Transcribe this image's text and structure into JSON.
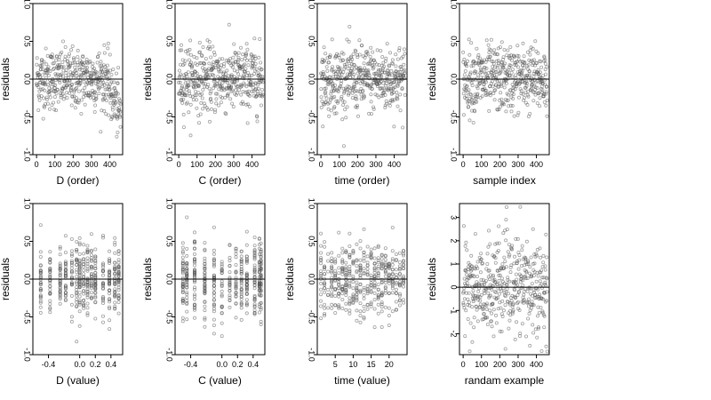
{
  "chart_data": [
    {
      "type": "scatter",
      "id": "p1",
      "xlabel": "D (order)",
      "ylabel": "residuals",
      "xlim": [
        -20,
        470
      ],
      "ylim": [
        -1.0,
        1.0
      ],
      "x_ticks": [
        0,
        100,
        200,
        300,
        400
      ],
      "y_ticks": [
        -1.0,
        -0.5,
        0.0,
        0.5,
        1.0
      ],
      "y_tick_labels": [
        "-1.0",
        "-0.5",
        "0.0",
        "0.5",
        "1.0"
      ],
      "x_tick_labels": [
        "0",
        "100",
        "200",
        "300",
        "400"
      ],
      "hline": 0,
      "n_points": 460,
      "gen": {
        "kind": "index",
        "sd": 0.2,
        "trend": "down_end"
      }
    },
    {
      "type": "scatter",
      "id": "p2",
      "xlabel": "C (order)",
      "ylabel": "residuals",
      "xlim": [
        -20,
        470
      ],
      "ylim": [
        -1.0,
        1.0
      ],
      "x_ticks": [
        0,
        100,
        200,
        300,
        400
      ],
      "y_ticks": [
        -1.0,
        -0.5,
        0.0,
        0.5,
        1.0
      ],
      "y_tick_labels": [
        "-1.0",
        "-0.5",
        "0.0",
        "0.5",
        "1.0"
      ],
      "x_tick_labels": [
        "0",
        "100",
        "200",
        "300",
        "400"
      ],
      "hline": 0,
      "n_points": 460,
      "gen": {
        "kind": "index",
        "sd": 0.22,
        "trend": "none"
      }
    },
    {
      "type": "scatter",
      "id": "p3",
      "xlabel": "time (order)",
      "ylabel": "residuals",
      "xlim": [
        -20,
        470
      ],
      "ylim": [
        -1.0,
        1.0
      ],
      "x_ticks": [
        0,
        100,
        200,
        300,
        400
      ],
      "y_ticks": [
        -1.0,
        -0.5,
        0.0,
        0.5,
        1.0
      ],
      "y_tick_labels": [
        "-1.0",
        "-0.5",
        "0.0",
        "0.5",
        "1.0"
      ],
      "x_tick_labels": [
        "0",
        "100",
        "200",
        "300",
        "400"
      ],
      "hline": 0,
      "n_points": 460,
      "gen": {
        "kind": "index",
        "sd": 0.22,
        "trend": "none"
      }
    },
    {
      "type": "scatter",
      "id": "p4",
      "xlabel": "sample index",
      "ylabel": "residuals",
      "xlim": [
        -20,
        470
      ],
      "ylim": [
        -1.0,
        1.0
      ],
      "x_ticks": [
        0,
        100,
        200,
        300,
        400
      ],
      "y_ticks": [
        -1.0,
        -0.5,
        0.0,
        0.5,
        1.0
      ],
      "y_tick_labels": [
        "-1.0",
        "-0.5",
        "0.0",
        "0.5",
        "1.0"
      ],
      "x_tick_labels": [
        "0",
        "100",
        "200",
        "300",
        "400"
      ],
      "hline": 0,
      "n_points": 460,
      "gen": {
        "kind": "index",
        "sd": 0.22,
        "trend": "none"
      }
    },
    {
      "type": "scatter",
      "id": "p5",
      "xlabel": "D (value)",
      "ylabel": "residuals",
      "xlim": [
        -0.6,
        0.55
      ],
      "ylim": [
        -1.0,
        1.0
      ],
      "x_ticks": [
        -0.4,
        0.0,
        0.2,
        0.4
      ],
      "y_ticks": [
        -1.0,
        -0.5,
        0.0,
        0.5,
        1.0
      ],
      "y_tick_labels": [
        "-1.0",
        "-0.5",
        "0.0",
        "0.5",
        "1.0"
      ],
      "x_tick_labels": [
        "-0.4",
        "0.0",
        "0.2",
        "0.4"
      ],
      "hline": 0,
      "n_points": 460,
      "gen": {
        "kind": "discrete",
        "levels": [
          -0.5,
          -0.38,
          -0.25,
          -0.18,
          -0.1,
          -0.04,
          0.0,
          0.05,
          0.1,
          0.15,
          0.2,
          0.3,
          0.38,
          0.45,
          0.5
        ],
        "sd": 0.22
      }
    },
    {
      "type": "scatter",
      "id": "p6",
      "xlabel": "C (value)",
      "ylabel": "residuals",
      "xlim": [
        -0.6,
        0.55
      ],
      "ylim": [
        -1.0,
        1.0
      ],
      "x_ticks": [
        -0.4,
        0.0,
        0.2,
        0.4
      ],
      "y_ticks": [
        -1.0,
        -0.5,
        0.0,
        0.5,
        1.0
      ],
      "y_tick_labels": [
        "-1.0",
        "-0.5",
        "0.0",
        "0.5",
        "1.0"
      ],
      "x_tick_labels": [
        "-0.4",
        "0.0",
        "0.2",
        "0.4"
      ],
      "hline": 0,
      "n_points": 460,
      "gen": {
        "kind": "discrete",
        "levels": [
          -0.5,
          -0.45,
          -0.35,
          -0.22,
          -0.1,
          0.0,
          0.1,
          0.18,
          0.25,
          0.32,
          0.42,
          0.48,
          0.5
        ],
        "sd": 0.24
      }
    },
    {
      "type": "scatter",
      "id": "p7",
      "xlabel": "time (value)",
      "ylabel": "residuals",
      "xlim": [
        0,
        25
      ],
      "ylim": [
        -1.0,
        1.0
      ],
      "x_ticks": [
        5,
        10,
        15,
        20
      ],
      "y_ticks": [
        -1.0,
        -0.5,
        0.0,
        0.5,
        1.0
      ],
      "y_tick_labels": [
        "-1.0",
        "-0.5",
        "0.0",
        "0.5",
        "1.0"
      ],
      "x_tick_labels": [
        "5",
        "10",
        "15",
        "20"
      ],
      "hline": 0,
      "n_points": 460,
      "gen": {
        "kind": "discrete",
        "levels": [
          1,
          2,
          3,
          4,
          5,
          6,
          7,
          8,
          9,
          10,
          11,
          12,
          13,
          14,
          15,
          16,
          17,
          18,
          19,
          20,
          21,
          22,
          23,
          24
        ],
        "sd": 0.24
      }
    },
    {
      "type": "scatter",
      "id": "p8",
      "xlabel": "randam example",
      "ylabel": "residuals",
      "xlim": [
        -20,
        470
      ],
      "ylim": [
        -2.9,
        3.6
      ],
      "x_ticks": [
        0,
        100,
        200,
        300,
        400
      ],
      "y_ticks": [
        -2,
        -1,
        0,
        1,
        2,
        3
      ],
      "y_tick_labels": [
        "-2",
        "-1",
        "0",
        "1",
        "2",
        "3"
      ],
      "x_tick_labels": [
        "0",
        "100",
        "200",
        "300",
        "400"
      ],
      "hline": 0,
      "n_points": 460,
      "gen": {
        "kind": "index",
        "sd": 1.0,
        "trend": "none"
      }
    }
  ]
}
